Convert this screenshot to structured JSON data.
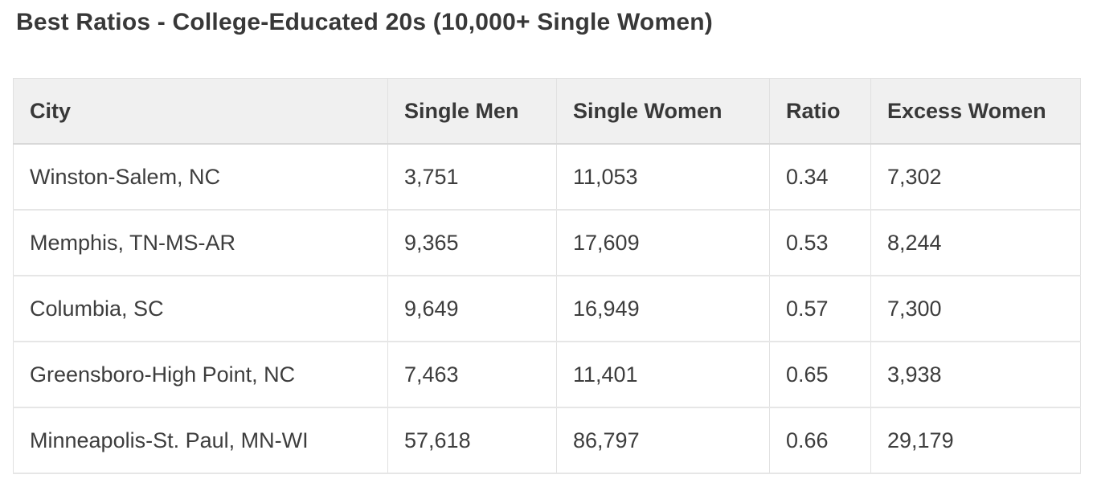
{
  "title": "Best Ratios - College-Educated 20s (10,000+ Single Women)",
  "chart_data": {
    "type": "table",
    "title": "Best Ratios - College-Educated 20s (10,000+ Single Women)",
    "columns": [
      "City",
      "Single Men",
      "Single Women",
      "Ratio",
      "Excess Women"
    ],
    "rows": [
      [
        "Winston-Salem, NC",
        "3,751",
        "11,053",
        "0.34",
        "7,302"
      ],
      [
        "Memphis, TN-MS-AR",
        "9,365",
        "17,609",
        "0.53",
        "8,244"
      ],
      [
        "Columbia, SC",
        "9,649",
        "16,949",
        "0.57",
        "7,300"
      ],
      [
        "Greensboro-High Point, NC",
        "7,463",
        "11,401",
        "0.65",
        "3,938"
      ],
      [
        "Minneapolis-St. Paul, MN-WI",
        "57,618",
        "86,797",
        "0.66",
        "29,179"
      ]
    ],
    "numeric_rows": [
      {
        "city": "Winston-Salem, NC",
        "single_men": 3751,
        "single_women": 11053,
        "ratio": 0.34,
        "excess_women": 7302
      },
      {
        "city": "Memphis, TN-MS-AR",
        "single_men": 9365,
        "single_women": 17609,
        "ratio": 0.53,
        "excess_women": 8244
      },
      {
        "city": "Columbia, SC",
        "single_men": 9649,
        "single_women": 16949,
        "ratio": 0.57,
        "excess_women": 7300
      },
      {
        "city": "Greensboro-High Point, NC",
        "single_men": 7463,
        "single_women": 11401,
        "ratio": 0.65,
        "excess_women": 3938
      },
      {
        "city": "Minneapolis-St. Paul, MN-WI",
        "single_men": 57618,
        "single_women": 86797,
        "ratio": 0.66,
        "excess_women": 29179
      }
    ]
  },
  "colors": {
    "text": "#3b3b3b",
    "header_background": "#f0f0f0",
    "header_border": "#d8d8d8",
    "cell_border": "#e1e1e1",
    "row_background": "#ffffff",
    "page_background": "#ffffff"
  }
}
